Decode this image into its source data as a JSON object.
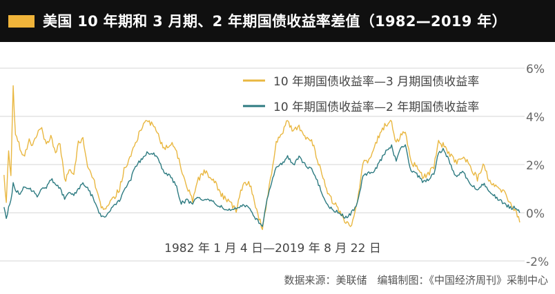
{
  "title": "美国 10 年期和 3 月期、2 年期国债收益率差值（1982—2019 年）",
  "source_note": "数据来源：美联储　编辑制图：《中国经济周刊》采制中心",
  "chart_data": {
    "type": "line",
    "title": "美国 10 年期和 3 月期、2 年期国债收益率差值（1982—2019 年）",
    "subtitle": "1982 年 1 月 4 日—2019 年 8 月 22 日",
    "xlabel": "",
    "ylabel": "",
    "x_range": [
      "1982-01-04",
      "2019-08-22"
    ],
    "ylim": [
      -2,
      6
    ],
    "y_ticks": [
      -2,
      0,
      2,
      4,
      6
    ],
    "y_tick_labels": [
      "-2%",
      "0%",
      "2%",
      "4%",
      "6%"
    ],
    "y_axis_side": "right",
    "grid": true,
    "legend_position": "top-right",
    "series": [
      {
        "name": "10 年期国债收益率—3 月期国债收益率",
        "color": "#e9b740",
        "points": [
          [
            "1982-01",
            1.5
          ],
          [
            "1982-03",
            0.4
          ],
          [
            "1982-05",
            2.6
          ],
          [
            "1982-07",
            1.6
          ],
          [
            "1982-09",
            5.2
          ],
          [
            "1982-11",
            3.2
          ],
          [
            "1983-03",
            2.7
          ],
          [
            "1983-07",
            2.3
          ],
          [
            "1983-11",
            3.1
          ],
          [
            "1984-02",
            2.8
          ],
          [
            "1984-06",
            3.3
          ],
          [
            "1984-10",
            3.5
          ],
          [
            "1985-02",
            2.8
          ],
          [
            "1985-06",
            3.2
          ],
          [
            "1985-10",
            2.5
          ],
          [
            "1986-02",
            2.9
          ],
          [
            "1986-06",
            1.3
          ],
          [
            "1986-10",
            1.8
          ],
          [
            "1987-02",
            1.6
          ],
          [
            "1987-06",
            2.9
          ],
          [
            "1987-10",
            3.1
          ],
          [
            "1988-02",
            2.0
          ],
          [
            "1988-06",
            1.5
          ],
          [
            "1988-10",
            1.0
          ],
          [
            "1989-02",
            0.2
          ],
          [
            "1989-06",
            0.1
          ],
          [
            "1989-10",
            0.4
          ],
          [
            "1990-02",
            0.7
          ],
          [
            "1990-06",
            1.0
          ],
          [
            "1990-10",
            1.8
          ],
          [
            "1991-03",
            2.2
          ],
          [
            "1991-08",
            2.9
          ],
          [
            "1992-01",
            3.5
          ],
          [
            "1992-06",
            3.9
          ],
          [
            "1992-11",
            3.6
          ],
          [
            "1993-04",
            3.2
          ],
          [
            "1993-09",
            2.6
          ],
          [
            "1994-02",
            2.9
          ],
          [
            "1994-07",
            2.7
          ],
          [
            "1994-12",
            1.8
          ],
          [
            "1995-05",
            1.1
          ],
          [
            "1995-10",
            0.5
          ],
          [
            "1996-03",
            1.4
          ],
          [
            "1996-08",
            1.7
          ],
          [
            "1997-01",
            1.5
          ],
          [
            "1997-06",
            1.2
          ],
          [
            "1997-12",
            0.7
          ],
          [
            "1998-06",
            0.5
          ],
          [
            "1998-12",
            0.1
          ],
          [
            "1999-06",
            1.2
          ],
          [
            "1999-12",
            1.2
          ],
          [
            "2000-06",
            0.1
          ],
          [
            "2000-11",
            -0.7
          ],
          [
            "2001-03",
            0.5
          ],
          [
            "2001-07",
            1.6
          ],
          [
            "2001-11",
            2.9
          ],
          [
            "2002-04",
            3.3
          ],
          [
            "2002-09",
            3.8
          ],
          [
            "2003-02",
            3.4
          ],
          [
            "2003-07",
            3.6
          ],
          [
            "2003-12",
            3.2
          ],
          [
            "2004-06",
            3.0
          ],
          [
            "2004-12",
            2.1
          ],
          [
            "2005-06",
            1.1
          ],
          [
            "2005-12",
            0.5
          ],
          [
            "2006-06",
            0.1
          ],
          [
            "2006-12",
            -0.4
          ],
          [
            "2007-05",
            -0.5
          ],
          [
            "2007-10",
            0.5
          ],
          [
            "2008-03",
            2.1
          ],
          [
            "2008-08",
            2.1
          ],
          [
            "2008-12",
            2.6
          ],
          [
            "2009-04",
            3.1
          ],
          [
            "2009-08",
            3.5
          ],
          [
            "2009-12",
            3.7
          ],
          [
            "2010-04",
            3.8
          ],
          [
            "2010-08",
            2.9
          ],
          [
            "2010-12",
            3.2
          ],
          [
            "2011-04",
            3.4
          ],
          [
            "2011-09",
            2.1
          ],
          [
            "2012-02",
            1.9
          ],
          [
            "2012-07",
            1.5
          ],
          [
            "2012-12",
            1.6
          ],
          [
            "2013-05",
            1.9
          ],
          [
            "2013-09",
            2.9
          ],
          [
            "2014-01",
            2.8
          ],
          [
            "2014-06",
            2.5
          ],
          [
            "2014-12",
            2.1
          ],
          [
            "2015-06",
            2.3
          ],
          [
            "2015-12",
            2.0
          ],
          [
            "2016-07",
            1.4
          ],
          [
            "2016-12",
            2.0
          ],
          [
            "2017-06",
            1.3
          ],
          [
            "2017-12",
            1.0
          ],
          [
            "2018-06",
            0.9
          ],
          [
            "2018-12",
            0.4
          ],
          [
            "2019-04",
            0.1
          ],
          [
            "2019-08",
            -0.4
          ]
        ]
      },
      {
        "name": "10 年期国债收益率—2 年期国债收益率",
        "color": "#2c7a80",
        "points": [
          [
            "1982-01",
            0.3
          ],
          [
            "1982-03",
            -0.3
          ],
          [
            "1982-05",
            0.2
          ],
          [
            "1982-07",
            0.5
          ],
          [
            "1982-09",
            1.2
          ],
          [
            "1982-11",
            0.9
          ],
          [
            "1983-03",
            0.8
          ],
          [
            "1983-07",
            1.1
          ],
          [
            "1983-11",
            1.0
          ],
          [
            "1984-02",
            0.9
          ],
          [
            "1984-06",
            0.7
          ],
          [
            "1984-10",
            1.0
          ],
          [
            "1985-02",
            1.0
          ],
          [
            "1985-06",
            1.4
          ],
          [
            "1985-10",
            1.2
          ],
          [
            "1986-02",
            1.0
          ],
          [
            "1986-06",
            0.6
          ],
          [
            "1986-10",
            0.8
          ],
          [
            "1987-02",
            0.7
          ],
          [
            "1987-06",
            1.0
          ],
          [
            "1987-10",
            1.2
          ],
          [
            "1988-02",
            1.0
          ],
          [
            "1988-06",
            0.7
          ],
          [
            "1988-10",
            0.3
          ],
          [
            "1989-02",
            -0.2
          ],
          [
            "1989-06",
            -0.1
          ],
          [
            "1989-10",
            0.1
          ],
          [
            "1990-02",
            0.3
          ],
          [
            "1990-06",
            0.5
          ],
          [
            "1990-10",
            0.9
          ],
          [
            "1991-03",
            1.3
          ],
          [
            "1991-08",
            1.9
          ],
          [
            "1992-01",
            2.2
          ],
          [
            "1992-06",
            2.5
          ],
          [
            "1992-11",
            2.5
          ],
          [
            "1993-04",
            2.2
          ],
          [
            "1993-09",
            1.7
          ],
          [
            "1994-02",
            1.5
          ],
          [
            "1994-07",
            1.2
          ],
          [
            "1994-12",
            0.4
          ],
          [
            "1995-05",
            0.5
          ],
          [
            "1995-10",
            0.4
          ],
          [
            "1996-03",
            0.7
          ],
          [
            "1996-08",
            0.5
          ],
          [
            "1997-01",
            0.5
          ],
          [
            "1997-06",
            0.4
          ],
          [
            "1997-12",
            0.2
          ],
          [
            "1998-06",
            0.1
          ],
          [
            "1998-12",
            0.2
          ],
          [
            "1999-06",
            0.3
          ],
          [
            "1999-12",
            0.2
          ],
          [
            "2000-06",
            -0.3
          ],
          [
            "2000-11",
            -0.6
          ],
          [
            "2001-03",
            0.6
          ],
          [
            "2001-07",
            1.3
          ],
          [
            "2001-11",
            1.9
          ],
          [
            "2002-04",
            2.0
          ],
          [
            "2002-09",
            2.3
          ],
          [
            "2003-02",
            2.0
          ],
          [
            "2003-07",
            2.3
          ],
          [
            "2003-12",
            2.0
          ],
          [
            "2004-06",
            1.8
          ],
          [
            "2004-12",
            1.2
          ],
          [
            "2005-06",
            0.5
          ],
          [
            "2005-12",
            0.1
          ],
          [
            "2006-06",
            0.0
          ],
          [
            "2006-12",
            -0.2
          ],
          [
            "2007-05",
            0.0
          ],
          [
            "2007-10",
            0.4
          ],
          [
            "2008-03",
            1.5
          ],
          [
            "2008-08",
            1.7
          ],
          [
            "2008-12",
            1.6
          ],
          [
            "2009-04",
            2.0
          ],
          [
            "2009-08",
            2.3
          ],
          [
            "2009-12",
            2.6
          ],
          [
            "2010-04",
            2.8
          ],
          [
            "2010-08",
            2.1
          ],
          [
            "2010-12",
            2.7
          ],
          [
            "2011-04",
            2.8
          ],
          [
            "2011-09",
            1.7
          ],
          [
            "2012-02",
            1.6
          ],
          [
            "2012-07",
            1.3
          ],
          [
            "2012-12",
            1.4
          ],
          [
            "2013-05",
            1.6
          ],
          [
            "2013-09",
            2.5
          ],
          [
            "2014-01",
            2.6
          ],
          [
            "2014-06",
            2.2
          ],
          [
            "2014-12",
            1.5
          ],
          [
            "2015-06",
            1.7
          ],
          [
            "2015-12",
            1.3
          ],
          [
            "2016-07",
            0.9
          ],
          [
            "2016-12",
            1.2
          ],
          [
            "2017-06",
            0.9
          ],
          [
            "2017-12",
            0.6
          ],
          [
            "2018-06",
            0.4
          ],
          [
            "2018-12",
            0.2
          ],
          [
            "2019-04",
            0.2
          ],
          [
            "2019-08",
            0.0
          ]
        ]
      }
    ]
  }
}
